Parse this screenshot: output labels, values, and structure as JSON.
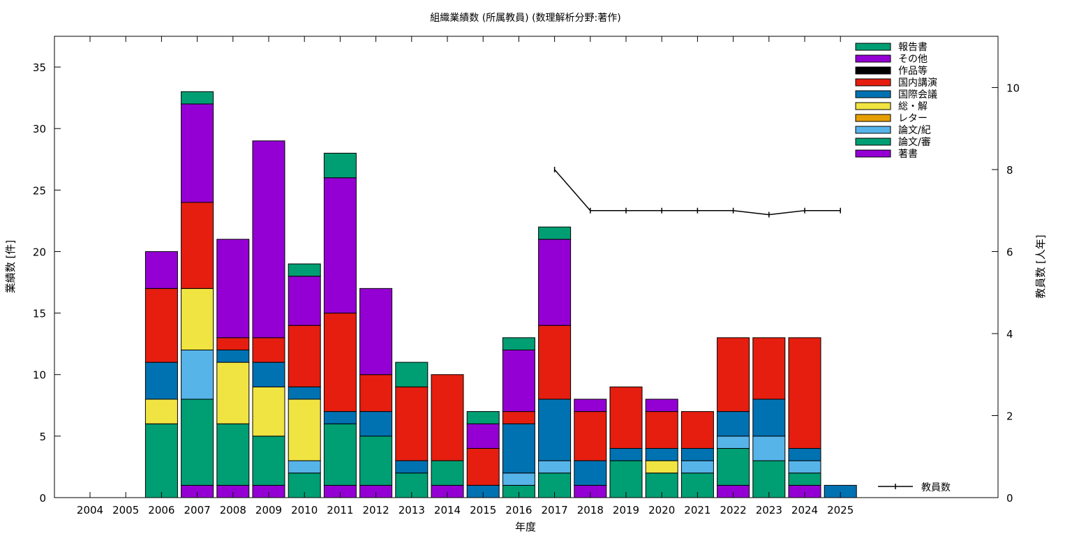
{
  "chart_data": {
    "type": "bar",
    "stacked": true,
    "title": "組織業績数 (所属教員) (数理解析分野:著作)",
    "xlabel": "年度",
    "ylabel": "業績数 [件]",
    "y2label": "教員数 [人年]",
    "ylim": [
      0,
      37.5
    ],
    "y2lim": [
      0,
      11.25
    ],
    "yticks": [
      0,
      5,
      10,
      15,
      20,
      25,
      30,
      35
    ],
    "y2ticks": [
      0,
      2,
      4,
      6,
      8,
      10
    ],
    "grid": false,
    "legend_position": "top-right",
    "categories": [
      "2004",
      "2005",
      "2006",
      "2007",
      "2008",
      "2009",
      "2010",
      "2011",
      "2012",
      "2013",
      "2014",
      "2015",
      "2016",
      "2017",
      "2018",
      "2019",
      "2020",
      "2021",
      "2022",
      "2023",
      "2024",
      "2025"
    ],
    "series": [
      {
        "name": "著書",
        "color": "#9400d3",
        "values": [
          0,
          0,
          0,
          1,
          1,
          1,
          0,
          1,
          1,
          0,
          1,
          0,
          0,
          0,
          1,
          0,
          0,
          0,
          1,
          0,
          1,
          0
        ]
      },
      {
        "name": "論文/審",
        "color": "#009e73",
        "values": [
          0,
          0,
          6,
          7,
          5,
          4,
          2,
          5,
          4,
          2,
          2,
          0,
          1,
          2,
          0,
          3,
          2,
          2,
          3,
          3,
          1,
          0
        ]
      },
      {
        "name": "論文/紀",
        "color": "#56b4e9",
        "values": [
          0,
          0,
          0,
          4,
          0,
          0,
          1,
          0,
          0,
          0,
          0,
          0,
          1,
          1,
          0,
          0,
          0,
          1,
          1,
          2,
          1,
          0
        ]
      },
      {
        "name": "レター",
        "color": "#e69f00",
        "values": [
          0,
          0,
          0,
          0,
          0,
          0,
          0,
          0,
          0,
          0,
          0,
          0,
          0,
          0,
          0,
          0,
          0,
          0,
          0,
          0,
          0,
          0
        ]
      },
      {
        "name": "総・解",
        "color": "#f0e442",
        "values": [
          0,
          0,
          2,
          5,
          5,
          4,
          5,
          0,
          0,
          0,
          0,
          0,
          0,
          0,
          0,
          0,
          1,
          0,
          0,
          0,
          0,
          0
        ]
      },
      {
        "name": "国際会議",
        "color": "#0072b2",
        "values": [
          0,
          0,
          3,
          0,
          1,
          2,
          1,
          1,
          2,
          1,
          0,
          1,
          4,
          5,
          2,
          1,
          1,
          1,
          2,
          3,
          1,
          1
        ]
      },
      {
        "name": "国内講演",
        "color": "#e51e10",
        "values": [
          0,
          0,
          6,
          7,
          1,
          2,
          5,
          8,
          3,
          6,
          7,
          3,
          1,
          6,
          4,
          5,
          3,
          3,
          6,
          5,
          9,
          0
        ]
      },
      {
        "name": "作品等",
        "color": "#000000",
        "values": [
          0,
          0,
          0,
          0,
          0,
          0,
          0,
          0,
          0,
          0,
          0,
          0,
          0,
          0,
          0,
          0,
          0,
          0,
          0,
          0,
          0,
          0
        ]
      },
      {
        "name": "その他",
        "color": "#9400d3",
        "values": [
          0,
          0,
          3,
          8,
          8,
          16,
          4,
          11,
          7,
          0,
          0,
          2,
          5,
          7,
          1,
          0,
          1,
          0,
          0,
          0,
          0,
          0
        ]
      },
      {
        "name": "報告書",
        "color": "#009e73",
        "values": [
          0,
          0,
          0,
          1,
          0,
          0,
          1,
          2,
          0,
          2,
          0,
          1,
          1,
          1,
          0,
          0,
          0,
          0,
          0,
          0,
          0,
          0
        ]
      }
    ],
    "legend_order": [
      "報告書",
      "その他",
      "作品等",
      "国内講演",
      "国際会議",
      "総・解",
      "レター",
      "論文/紀",
      "論文/審",
      "著書"
    ],
    "line_series": {
      "name": "教員数",
      "axis": "y2",
      "color": "#000000",
      "x": [
        "2017",
        "2018",
        "2019",
        "2020",
        "2021",
        "2022",
        "2023",
        "2024",
        "2025"
      ],
      "values": [
        8,
        7,
        7,
        7,
        7,
        7,
        6.9,
        7,
        7
      ]
    }
  }
}
